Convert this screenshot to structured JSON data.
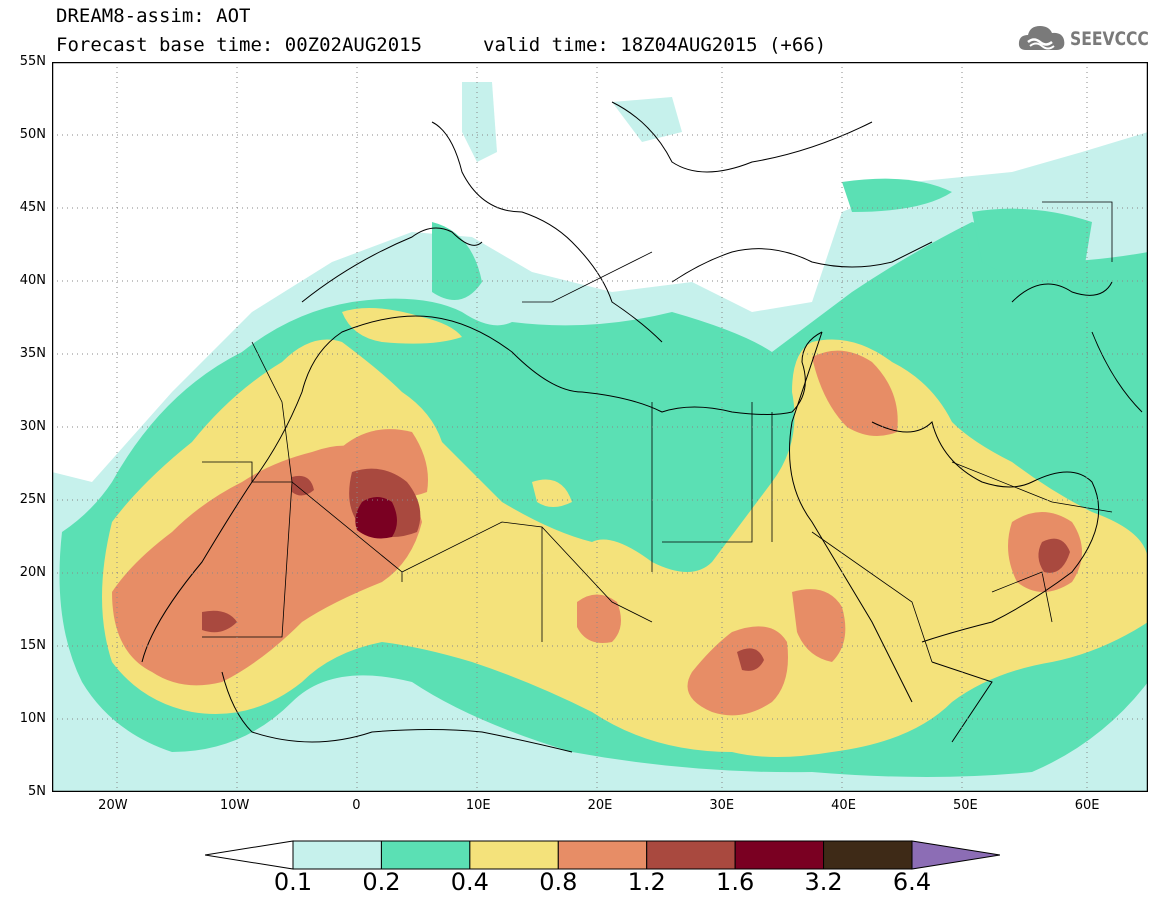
{
  "header": {
    "title_line1": "DREAM8-assim: AOT",
    "forecast_base": "Forecast base time: 00Z02AUG2015",
    "valid_time": "valid time: 18Z04AUG2015 (+66)"
  },
  "logo": {
    "text": "SEEVCCC",
    "icon": "cloud-logo-icon"
  },
  "map": {
    "lat_labels": [
      "55N",
      "50N",
      "45N",
      "40N",
      "35N",
      "30N",
      "25N",
      "20N",
      "15N",
      "10N",
      "5N"
    ],
    "lon_labels": [
      "20W",
      "10W",
      "0",
      "10E",
      "20E",
      "30E",
      "40E",
      "50E",
      "60E"
    ],
    "lon_range": [
      -25,
      65
    ],
    "lat_range": [
      5,
      55
    ],
    "gridlines": "dotted"
  },
  "colorbar": {
    "labels": [
      "0.1",
      "0.2",
      "0.4",
      "0.8",
      "1.2",
      "1.6",
      "3.2",
      "6.4"
    ],
    "colors": [
      "#ffffff",
      "#c6f1ec",
      "#5be0b4",
      "#f4e27b",
      "#e78d66",
      "#a9493f",
      "#7a0022",
      "#3e2a17",
      "#8c6db5"
    ]
  }
}
